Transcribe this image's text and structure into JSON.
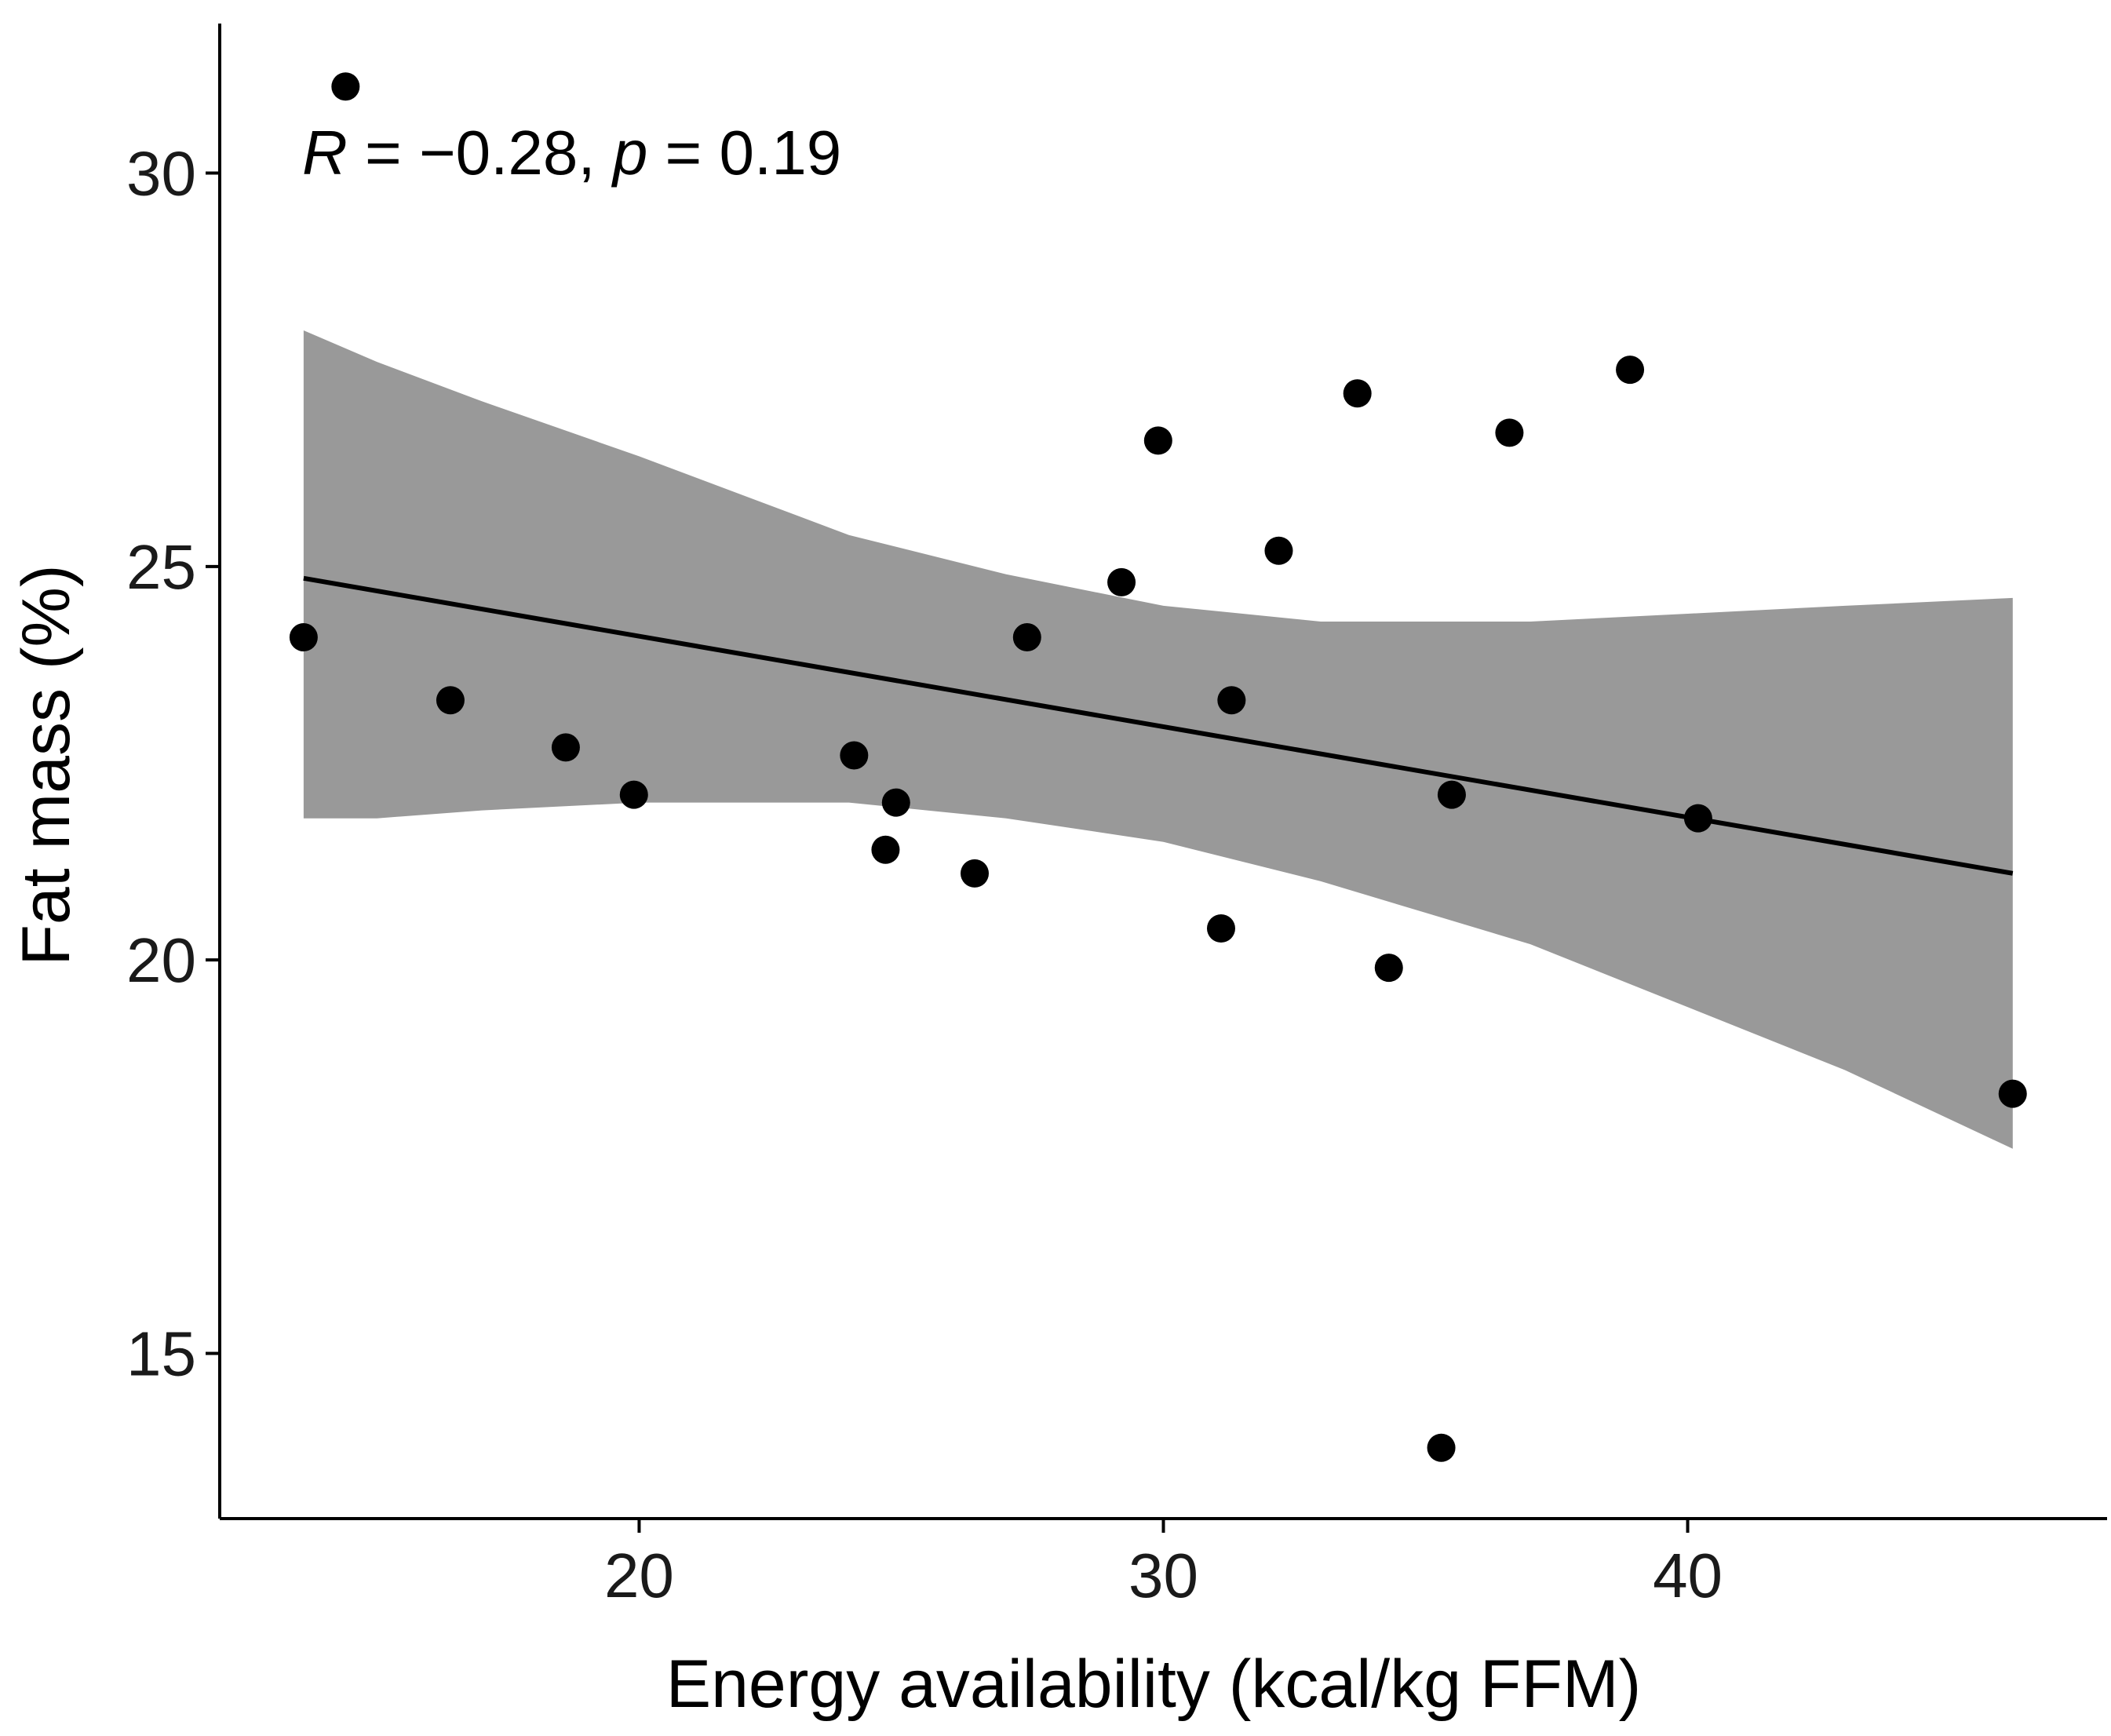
{
  "chart_data": {
    "type": "scatter",
    "title": "",
    "xlabel": "Energy availability (kcal/kg FFM)",
    "ylabel": "Fat mass (%)",
    "xlim": [
      12.0,
      48.0
    ],
    "ylim": [
      12.9,
      31.9
    ],
    "x_ticks": [
      20,
      30,
      40
    ],
    "x_tick_labels": [
      "20",
      "30",
      "40"
    ],
    "y_ticks": [
      15,
      20,
      25,
      30
    ],
    "y_tick_labels": [
      "15",
      "20",
      "25",
      "30"
    ],
    "grid": false,
    "annotation": {
      "r_symbol": "R",
      "r_value": " = −0.28, ",
      "p_symbol": "p",
      "p_value": " = 0.19"
    },
    "points": [
      {
        "x": 13.6,
        "y": 24.1
      },
      {
        "x": 14.4,
        "y": 31.1
      },
      {
        "x": 16.4,
        "y": 23.3
      },
      {
        "x": 18.6,
        "y": 22.7
      },
      {
        "x": 19.9,
        "y": 22.1
      },
      {
        "x": 24.1,
        "y": 22.6
      },
      {
        "x": 24.9,
        "y": 22.0
      },
      {
        "x": 24.7,
        "y": 21.4
      },
      {
        "x": 26.4,
        "y": 21.1
      },
      {
        "x": 27.4,
        "y": 24.1
      },
      {
        "x": 29.2,
        "y": 24.8
      },
      {
        "x": 29.9,
        "y": 26.6
      },
      {
        "x": 31.1,
        "y": 20.4
      },
      {
        "x": 31.3,
        "y": 23.3
      },
      {
        "x": 32.2,
        "y": 25.2
      },
      {
        "x": 33.7,
        "y": 27.2
      },
      {
        "x": 34.3,
        "y": 19.9
      },
      {
        "x": 35.3,
        "y": 13.8
      },
      {
        "x": 35.5,
        "y": 22.1
      },
      {
        "x": 36.6,
        "y": 26.7
      },
      {
        "x": 38.9,
        "y": 27.5
      },
      {
        "x": 40.2,
        "y": 21.8
      },
      {
        "x": 46.2,
        "y": 18.3
      }
    ],
    "fit_line": {
      "x": [
        13.6,
        46.2
      ],
      "y": [
        24.85,
        21.1
      ]
    },
    "confidence_band": {
      "x": [
        13.6,
        15.0,
        17.0,
        20.0,
        24.0,
        27.0,
        30.0,
        33.0,
        35.0,
        37.0,
        40.0,
        43.0,
        46.2
      ],
      "upper": [
        28.0,
        27.6,
        27.1,
        26.4,
        25.4,
        24.9,
        24.5,
        24.3,
        24.3,
        24.3,
        24.4,
        24.5,
        24.6
      ],
      "lower": [
        21.8,
        21.8,
        21.9,
        22.0,
        22.0,
        21.8,
        21.5,
        21.0,
        20.6,
        20.2,
        19.4,
        18.6,
        17.6
      ]
    },
    "colors": {
      "points": "#000000",
      "line": "#000000",
      "band": "#999999",
      "axis": "#000000"
    }
  }
}
